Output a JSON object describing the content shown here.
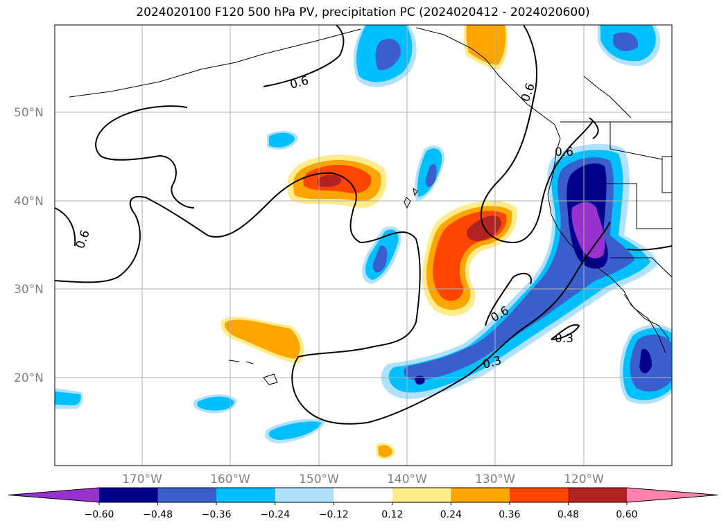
{
  "title": "2024020100 F120 500 hPa PV, precipitation PC (2024020412 - 2024020600)",
  "map": {
    "lat_labels": [
      "50°N",
      "40°N",
      "30°N",
      "20°N"
    ],
    "lon_labels": [
      "170°W",
      "160°W",
      "150°W",
      "140°W",
      "130°W",
      "120°W"
    ],
    "contour_labels": [
      "0.6",
      "0.6",
      "0.6",
      "0.6",
      "0.6",
      "0.3",
      "0.3"
    ]
  },
  "colorbar": {
    "ticks": [
      "−0.60",
      "−0.48",
      "−0.36",
      "−0.24",
      "−0.12",
      "0.12",
      "0.24",
      "0.36",
      "0.48",
      "0.60"
    ],
    "colors": [
      "#9932cc",
      "#00008b",
      "#3a5fcd",
      "#00bfff",
      "#b0e2ff",
      "#ffffff",
      "#ffec8b",
      "#ffa500",
      "#ff4500",
      "#b22222",
      "#ff82ab"
    ]
  }
}
